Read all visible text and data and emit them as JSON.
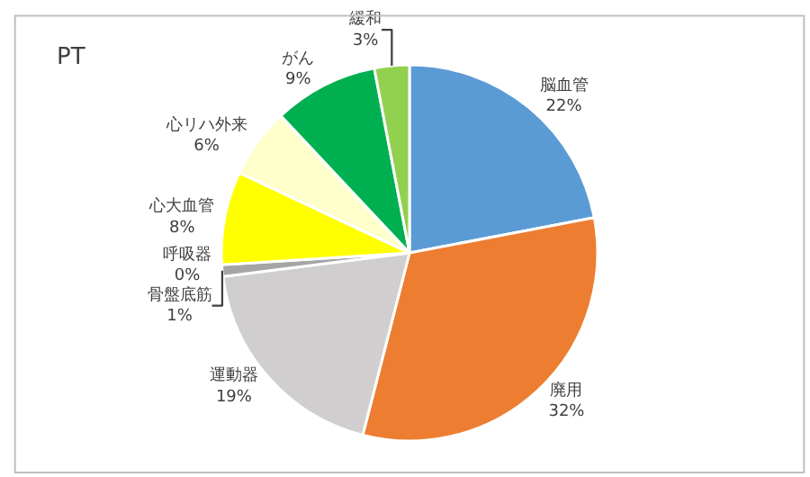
{
  "chart_data": {
    "type": "pie",
    "title": "PT",
    "categories": [
      "脳血管",
      "廃用",
      "運動器",
      "骨盤底筋",
      "呼吸器",
      "心大血管",
      "心リハ外来",
      "がん",
      "緩和"
    ],
    "values": [
      22,
      32,
      19,
      1,
      0,
      8,
      6,
      9,
      3
    ],
    "value_labels": [
      "22%",
      "32%",
      "19%",
      "1%",
      "0%",
      "8%",
      "6%",
      "9%",
      "3%"
    ],
    "colors": [
      "#5b9bd5",
      "#ed7d31",
      "#d0cece",
      "#a5a5a5",
      "#7f7f7f",
      "#ffff00",
      "#ffffcc",
      "#00b050",
      "#92d050"
    ],
    "legend": false
  }
}
